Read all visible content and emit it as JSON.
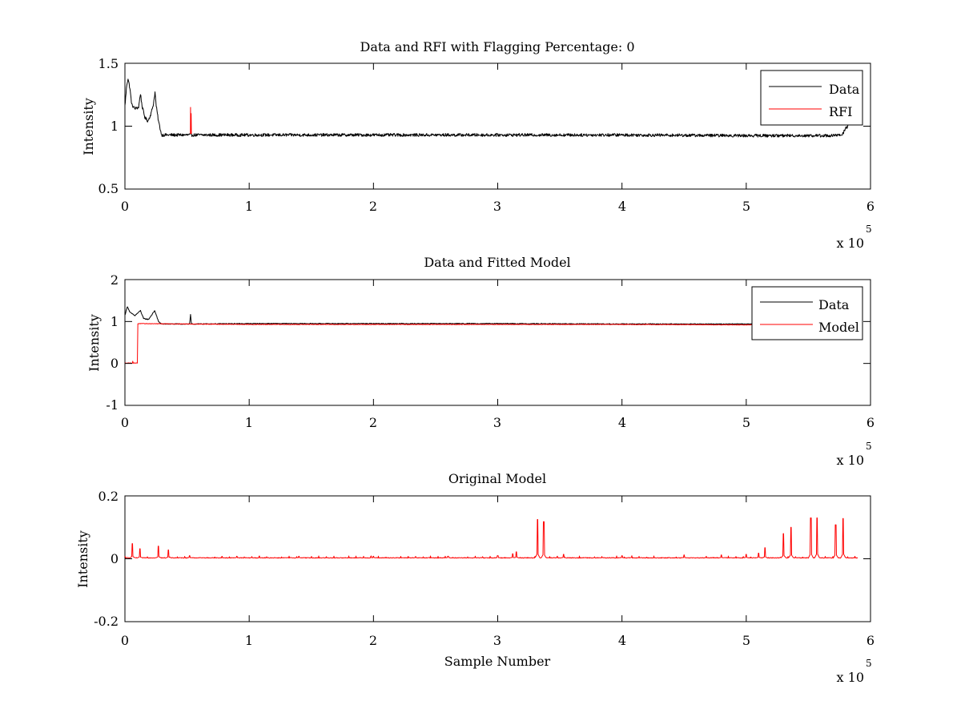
{
  "chart_data": [
    {
      "type": "line",
      "title": "Data and RFI with Flagging Percentage: 0",
      "xlabel": "",
      "ylabel": "Intensity",
      "xlim": [
        0,
        600000
      ],
      "ylim": [
        0.5,
        1.5
      ],
      "x_ticks": [
        "0",
        "1",
        "2",
        "3",
        "4",
        "5",
        "6"
      ],
      "y_ticks": [
        "0.5",
        "1",
        "1.5"
      ],
      "x_exponent": {
        "prefix": "x 10",
        "power": "5"
      },
      "legend": {
        "position": "top-right",
        "entries": [
          "Data",
          "RFI"
        ]
      },
      "grid": false,
      "series": [
        {
          "name": "Data",
          "color": "#000000",
          "noise": 0.012,
          "points": [
            [
              0,
              1.16
            ],
            [
              1500,
              1.33
            ],
            [
              2500,
              1.38
            ],
            [
              4000,
              1.3
            ],
            [
              5500,
              1.17
            ],
            [
              8000,
              1.14
            ],
            [
              11000,
              1.15
            ],
            [
              12500,
              1.26
            ],
            [
              13800,
              1.16
            ],
            [
              16000,
              1.07
            ],
            [
              18500,
              1.04
            ],
            [
              21000,
              1.1
            ],
            [
              23000,
              1.18
            ],
            [
              24200,
              1.27
            ],
            [
              25200,
              1.16
            ],
            [
              27000,
              1.04
            ],
            [
              29500,
              0.93
            ],
            [
              40000,
              0.93
            ],
            [
              100000,
              0.93
            ],
            [
              200000,
              0.93
            ],
            [
              300000,
              0.93
            ],
            [
              400000,
              0.93
            ],
            [
              500000,
              0.925
            ],
            [
              570000,
              0.925
            ],
            [
              577000,
              0.93
            ],
            [
              580000,
              0.98
            ],
            [
              583000,
              1.02
            ]
          ]
        },
        {
          "name": "RFI",
          "color": "#ff0000",
          "noise": 0,
          "points": [
            [
              52700,
              0.94
            ],
            [
              52800,
              1.15
            ],
            [
              53000,
              0.94
            ],
            [
              53300,
              1.1
            ],
            [
              53500,
              0.94
            ]
          ]
        }
      ]
    },
    {
      "type": "line",
      "title": "Data and Fitted Model",
      "xlabel": "",
      "ylabel": "Intensity",
      "xlim": [
        0,
        600000
      ],
      "ylim": [
        -1,
        2
      ],
      "x_ticks": [
        "0",
        "1",
        "2",
        "3",
        "4",
        "5",
        "6"
      ],
      "y_ticks": [
        "-1",
        "0",
        "1",
        "2"
      ],
      "x_exponent": {
        "prefix": "x 10",
        "power": "5"
      },
      "legend": {
        "position": "top-right",
        "entries": [
          "Data",
          "Model"
        ]
      },
      "grid": false,
      "series": [
        {
          "name": "Data",
          "color": "#000000",
          "noise": 0.01,
          "points": [
            [
              0,
              1.15
            ],
            [
              2000,
              1.36
            ],
            [
              4000,
              1.22
            ],
            [
              8000,
              1.14
            ],
            [
              12500,
              1.26
            ],
            [
              15000,
              1.07
            ],
            [
              19000,
              1.05
            ],
            [
              24000,
              1.26
            ],
            [
              27000,
              1.0
            ],
            [
              29500,
              0.94
            ],
            [
              52000,
              0.94
            ],
            [
              52800,
              1.16
            ],
            [
              53500,
              0.94
            ],
            [
              100000,
              0.95
            ],
            [
              200000,
              0.95
            ],
            [
              300000,
              0.95
            ],
            [
              400000,
              0.94
            ],
            [
              500000,
              0.94
            ],
            [
              583000,
              0.94
            ]
          ]
        },
        {
          "name": "Model",
          "color": "#ff0000",
          "noise": 0.006,
          "points": [
            [
              0,
              0.01
            ],
            [
              6000,
              0.01
            ],
            [
              6300,
              0.05
            ],
            [
              6600,
              0.01
            ],
            [
              10000,
              0.01
            ],
            [
              10400,
              0.95
            ],
            [
              100000,
              0.93
            ],
            [
              200000,
              0.93
            ],
            [
              300000,
              0.93
            ],
            [
              400000,
              0.93
            ],
            [
              500000,
              0.92
            ],
            [
              583000,
              0.92
            ]
          ]
        }
      ]
    },
    {
      "type": "line",
      "title": "Original Model",
      "xlabel": "Sample Number",
      "ylabel": "Intensity",
      "xlim": [
        0,
        600000
      ],
      "ylim": [
        -0.2,
        0.2
      ],
      "x_ticks": [
        "0",
        "1",
        "2",
        "3",
        "4",
        "5",
        "6"
      ],
      "y_ticks": [
        "-0.2",
        "0",
        "0.2"
      ],
      "x_exponent": {
        "prefix": "x 10",
        "power": "5"
      },
      "legend": null,
      "grid": false,
      "baseline": 0.003,
      "x_end": 590000,
      "series": [
        {
          "name": "",
          "color": "#ff0000",
          "noise": 0.001,
          "spikes": [
            [
              6000,
              0.048
            ],
            [
              12000,
              0.032
            ],
            [
              27000,
              0.04
            ],
            [
              35000,
              0.028
            ],
            [
              52000,
              0.01
            ],
            [
              90000,
              0.008
            ],
            [
              140000,
              0.008
            ],
            [
              200000,
              0.008
            ],
            [
              260000,
              0.008
            ],
            [
              300000,
              0.01
            ],
            [
              312000,
              0.016
            ],
            [
              315000,
              0.022
            ],
            [
              332000,
              0.125
            ],
            [
              337000,
              0.118
            ],
            [
              353000,
              0.014
            ],
            [
              400000,
              0.01
            ],
            [
              450000,
              0.012
            ],
            [
              480000,
              0.012
            ],
            [
              500000,
              0.014
            ],
            [
              510000,
              0.018
            ],
            [
              515000,
              0.035
            ],
            [
              530000,
              0.08
            ],
            [
              536000,
              0.1
            ],
            [
              552000,
              0.13
            ],
            [
              557000,
              0.13
            ],
            [
              572000,
              0.108
            ],
            [
              578000,
              0.128
            ]
          ]
        }
      ]
    }
  ]
}
